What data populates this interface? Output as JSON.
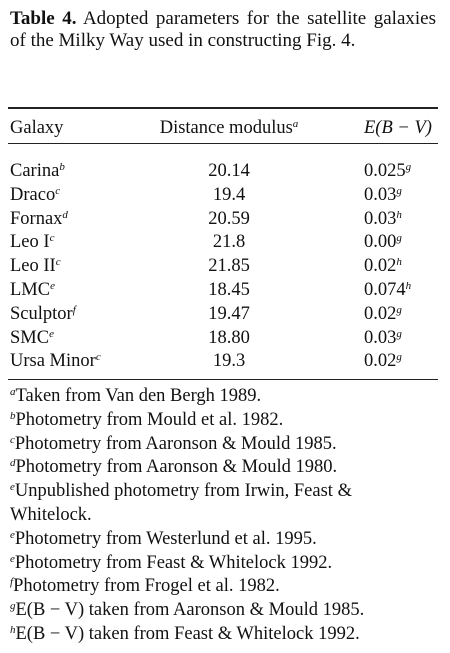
{
  "caption": {
    "label": "Table 4.",
    "text": "Adopted parameters for the satellite galaxies of the Milky Way used in constructing Fig. 4."
  },
  "table": {
    "header": [
      {
        "text": "Galaxy"
      },
      {
        "text": "Distance modulus",
        "note": "a"
      },
      {
        "text": "E(B − V)"
      }
    ],
    "rows": [
      [
        "Carina",
        "b",
        "20.14",
        "0.025",
        "g"
      ],
      [
        "Draco",
        "c",
        "19.4",
        "0.03",
        "g"
      ],
      [
        "Fornax",
        "d",
        "20.59",
        "0.03",
        "h"
      ],
      [
        "Leo I",
        "c",
        "21.8",
        "0.00",
        "g"
      ],
      [
        "Leo II",
        "c",
        "21.85",
        "0.02",
        "h"
      ],
      [
        "LMC",
        "e",
        "18.45",
        "0.074",
        "h"
      ],
      [
        "Sculptor",
        "f",
        "19.47",
        "0.02",
        "g"
      ],
      [
        "SMC",
        "e",
        "18.80",
        "0.03",
        "g"
      ],
      [
        "Ursa Minor",
        "c",
        "19.3",
        "0.02",
        "g"
      ]
    ]
  },
  "footnotes": [
    {
      "mark": "a",
      "text": "Taken from Van den Bergh 1989."
    },
    {
      "mark": "b",
      "text": "Photometry from Mould et al. 1982."
    },
    {
      "mark": "c",
      "text": "Photometry from Aaronson & Mould 1985."
    },
    {
      "mark": "d",
      "text": "Photometry from Aaronson & Mould 1980."
    },
    {
      "mark": "e",
      "text": "Unpublished photometry from Irwin, Feast & Whitelock."
    },
    {
      "mark": "e",
      "text": "Photometry from Westerlund et al. 1995."
    },
    {
      "mark": "e",
      "text": "Photometry from Feast & Whitelock 1992."
    },
    {
      "mark": "f",
      "text": "Photometry from Frogel et al. 1982."
    },
    {
      "mark": "g",
      "text": "E(B − V) taken from Aaronson & Mould 1985."
    },
    {
      "mark": "h",
      "text": "E(B − V) taken from Feast & Whitelock 1992."
    }
  ]
}
